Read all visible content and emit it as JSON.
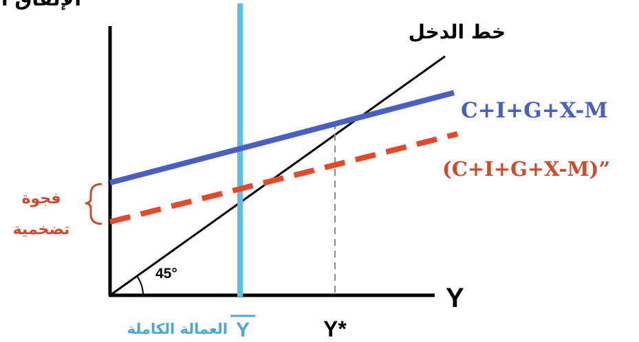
{
  "header": {
    "top_left_label": "الإنفاق الكلي"
  },
  "lines": {
    "income_line": {
      "label": "خط الدخل",
      "color": "#000000"
    },
    "aggregate_expenditure": {
      "label": "C+I+G+X-M",
      "color": "#4a5fc1"
    },
    "aggregate_expenditure_2": {
      "label": "(C+I+G+X-M)”",
      "color": "#e8472a"
    },
    "full_employment": {
      "color": "#5bbfe6"
    }
  },
  "axes": {
    "x_axis_label": "Y",
    "angle_label": "45°",
    "equilibrium_label": "Y*",
    "full_employment_symbol": "Y",
    "full_employment_text": "العمالة الكاملة"
  },
  "gap": {
    "line1": "فجوة",
    "line2": "تضخمية",
    "color": "#d04a2a"
  },
  "colors": {
    "axis": "#000000",
    "dashed_guide": "#888888",
    "full_employment_text": "#4aa8d8"
  }
}
